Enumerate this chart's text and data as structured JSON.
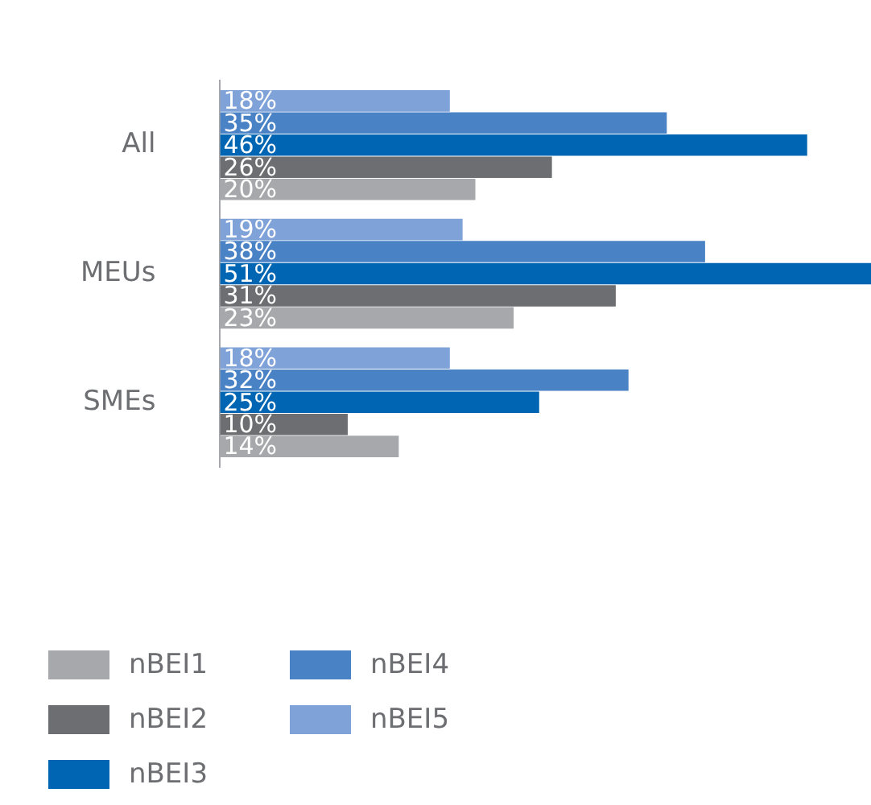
{
  "chart_data": {
    "type": "bar",
    "orientation": "horizontal",
    "categories": [
      "All",
      "MEUs",
      "SMEs"
    ],
    "series": [
      {
        "name": "nBEI1",
        "color": "#a6a8ab",
        "values": [
          20,
          23,
          14
        ],
        "value_labels": [
          "20%",
          "23%",
          "14%"
        ]
      },
      {
        "name": "nBEI2",
        "color": "#6d6e71",
        "values": [
          26,
          31,
          10
        ],
        "value_labels": [
          "26%",
          "31%",
          "10%"
        ]
      },
      {
        "name": "nBEI3",
        "color": "#0066b3",
        "values": [
          46,
          51,
          25
        ],
        "value_labels": [
          "46%",
          "51%",
          "25%"
        ]
      },
      {
        "name": "nBEI4",
        "color": "#4a82c6",
        "values": [
          35,
          38,
          32
        ],
        "value_labels": [
          "35%",
          "38%",
          "32%"
        ]
      },
      {
        "name": "nBEI5",
        "color": "#7fa3d8",
        "values": [
          18,
          19,
          18
        ],
        "value_labels": [
          "18%",
          "19%",
          "18%"
        ]
      }
    ],
    "legend": "bottom"
  }
}
